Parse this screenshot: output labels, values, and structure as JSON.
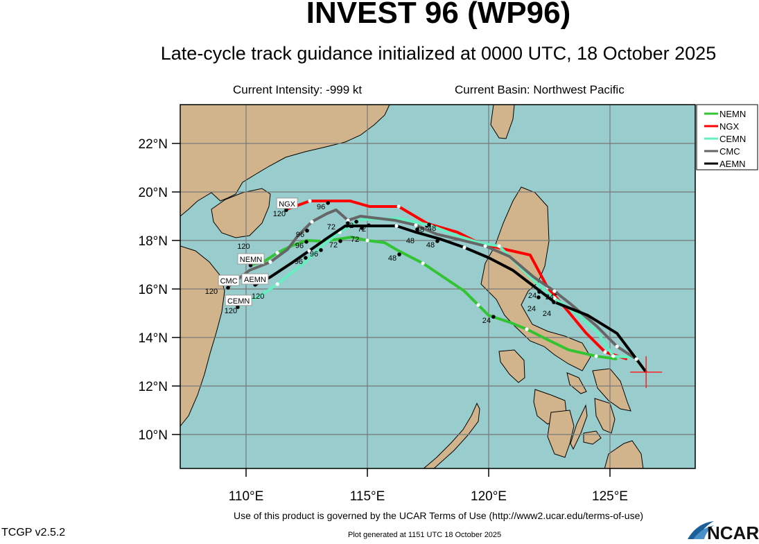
{
  "header": {
    "title": "INVEST 96 (WP96)",
    "subtitle": "Late-cycle track guidance initialized at 0000 UTC, 18 October 2025",
    "current_intensity": "Current Intensity: -999 kt",
    "current_basin": "Current Basin: Northwest Pacific"
  },
  "footer": {
    "terms": "Use of this product is governed by the UCAR Terms of Use (http://www2.ucar.edu/terms-of-use)",
    "version": "TCGP v2.5.2",
    "generated": "Plot generated at 1151 UTC   18 October 2025",
    "logo": "NCAR"
  },
  "chart_data": {
    "type": "map-tracks",
    "lon_range": [
      107.3,
      128.5
    ],
    "lat_range": [
      8.6,
      23.6
    ],
    "grid": true,
    "x_ticks": [
      "110°E",
      "115°E",
      "120°E",
      "125°E"
    ],
    "x_tick_values": [
      110,
      115,
      120,
      125
    ],
    "y_ticks": [
      "10°N",
      "12°N",
      "14°N",
      "16°N",
      "18°N",
      "20°N",
      "22°N"
    ],
    "y_tick_values": [
      10,
      12,
      14,
      16,
      18,
      20,
      22
    ],
    "colors": {
      "ocean": "#99cccc",
      "land": "#d2b48c",
      "grid": "#777777",
      "current_position": "#ff2020"
    },
    "current_position": {
      "lon": 126.49,
      "lat": 12.57
    },
    "legend_position": "right",
    "series": [
      {
        "name": "NEMN",
        "color": "#33c433",
        "points": [
          [
            125.29,
            13.11
          ],
          [
            124.43,
            13.23
          ],
          [
            123.29,
            13.49
          ],
          [
            122.43,
            13.91
          ],
          [
            121.57,
            14.34
          ],
          [
            120.86,
            14.63
          ],
          [
            120.0,
            14.91
          ],
          [
            119.57,
            15.34
          ],
          [
            119.0,
            15.91
          ],
          [
            118.14,
            16.49
          ],
          [
            117.29,
            17.06
          ],
          [
            116.29,
            17.57
          ],
          [
            115.71,
            17.91
          ],
          [
            115.0,
            18.0
          ],
          [
            114.34,
            18.14
          ],
          [
            113.86,
            18.06
          ],
          [
            113.14,
            17.97
          ],
          [
            112.49,
            18.0
          ],
          [
            111.86,
            17.77
          ],
          [
            111.29,
            17.49
          ],
          [
            110.71,
            17.11
          ],
          [
            110.2,
            17.0
          ]
        ],
        "labels": [
          {
            "text": "120",
            "lon": 109.9,
            "lat": 16.86
          },
          {
            "text": "96",
            "lon": 112.2,
            "lat": 17.83
          },
          {
            "text": "72",
            "lon": 113.6,
            "lat": 17.86
          },
          {
            "text": "48",
            "lon": 116.03,
            "lat": 17.31
          },
          {
            "text": "24",
            "lon": 119.91,
            "lat": 14.74
          }
        ]
      },
      {
        "name": "NGX",
        "color": "#ff0000",
        "points": [
          [
            125.71,
            13.11
          ],
          [
            124.8,
            13.4
          ],
          [
            124.0,
            14.2
          ],
          [
            123.29,
            15.06
          ],
          [
            122.43,
            16.06
          ],
          [
            121.71,
            17.4
          ],
          [
            120.43,
            17.69
          ],
          [
            119.57,
            17.91
          ],
          [
            118.71,
            18.34
          ],
          [
            117.49,
            18.69
          ],
          [
            116.29,
            19.4
          ],
          [
            115.09,
            19.4
          ],
          [
            114.29,
            19.63
          ],
          [
            112.63,
            19.63
          ],
          [
            111.69,
            19.29
          ]
        ],
        "labels": [
          {
            "text": "120",
            "lon": 111.37,
            "lat": 19.14
          },
          {
            "text": "96",
            "lon": 113.09,
            "lat": 19.43
          },
          {
            "text": "72",
            "lon": 114.77,
            "lat": 18.51
          },
          {
            "text": "48",
            "lon": 117.17,
            "lat": 18.49
          },
          {
            "text": "24",
            "lon": 122.51,
            "lat": 15.71
          }
        ]
      },
      {
        "name": "CEMN",
        "color": "#66eec0",
        "points": [
          [
            126.14,
            13.17
          ],
          [
            125.14,
            13.23
          ],
          [
            124.49,
            14.2
          ],
          [
            123.71,
            14.91
          ],
          [
            122.71,
            15.63
          ],
          [
            121.86,
            16.34
          ],
          [
            121.14,
            17.06
          ],
          [
            120.43,
            17.77
          ],
          [
            119.66,
            17.89
          ],
          [
            118.71,
            18.2
          ],
          [
            117.57,
            18.63
          ],
          [
            116.29,
            18.91
          ],
          [
            114.71,
            18.86
          ],
          [
            113.86,
            18.34
          ],
          [
            113.29,
            17.91
          ],
          [
            112.43,
            17.11
          ],
          [
            111.29,
            16.2
          ],
          [
            110.57,
            15.71
          ],
          [
            109.69,
            15.29
          ]
        ],
        "labels": [
          {
            "text": "120",
            "lon": 109.37,
            "lat": 15.14
          },
          {
            "text": "96",
            "lon": 112.8,
            "lat": 17.49
          },
          {
            "text": "72",
            "lon": 114.26,
            "lat": 18.66
          },
          {
            "text": "48",
            "lon": 117.26,
            "lat": 18.54
          },
          {
            "text": "24",
            "lon": 121.8,
            "lat": 15.77
          }
        ]
      },
      {
        "name": "CMC",
        "color": "#666666",
        "points": [
          [
            126.09,
            13.11
          ],
          [
            125.29,
            13.63
          ],
          [
            124.43,
            14.49
          ],
          [
            123.43,
            15.34
          ],
          [
            122.71,
            15.91
          ],
          [
            121.86,
            16.49
          ],
          [
            120.86,
            17.34
          ],
          [
            119.86,
            17.77
          ],
          [
            118.71,
            18.06
          ],
          [
            117.86,
            18.26
          ],
          [
            117.0,
            18.63
          ],
          [
            116.14,
            18.83
          ],
          [
            114.71,
            19.0
          ],
          [
            114.2,
            18.83
          ],
          [
            113.71,
            19.26
          ],
          [
            113.34,
            19.11
          ],
          [
            112.71,
            18.77
          ],
          [
            112.14,
            18.2
          ],
          [
            111.71,
            17.63
          ],
          [
            111.0,
            17.11
          ],
          [
            110.14,
            16.77
          ],
          [
            109.29,
            16.11
          ]
        ],
        "labels": [
          {
            "text": "120",
            "lon": 108.97,
            "lat": 15.94
          },
          {
            "text": "96",
            "lon": 112.23,
            "lat": 18.29
          },
          {
            "text": "72",
            "lon": 113.91,
            "lat": 18.6
          },
          {
            "text": "48",
            "lon": 116.77,
            "lat": 18.34
          },
          {
            "text": "24",
            "lon": 121.77,
            "lat": 15.54
          }
        ]
      },
      {
        "name": "AEMN",
        "color": "#000000",
        "points": [
          [
            126.49,
            12.57
          ],
          [
            126.09,
            13.11
          ],
          [
            125.29,
            14.17
          ],
          [
            124.09,
            14.91
          ],
          [
            122.71,
            15.46
          ],
          [
            121.0,
            16.77
          ],
          [
            120.0,
            17.29
          ],
          [
            119.0,
            17.71
          ],
          [
            118.0,
            18.06
          ],
          [
            117.0,
            18.34
          ],
          [
            116.2,
            18.6
          ],
          [
            114.09,
            18.6
          ],
          [
            113.29,
            18.06
          ],
          [
            112.6,
            17.57
          ],
          [
            111.86,
            17.06
          ],
          [
            111.0,
            16.49
          ],
          [
            110.37,
            16.17
          ]
        ],
        "labels": [
          {
            "text": "120",
            "lon": 110.09,
            "lat": 16.06
          },
          {
            "text": "96",
            "lon": 112.17,
            "lat": 17.17
          },
          {
            "text": "72",
            "lon": 114.49,
            "lat": 18.4
          },
          {
            "text": "48",
            "lon": 117.6,
            "lat": 17.86
          },
          {
            "text": "24",
            "lon": 122.4,
            "lat": 15.34
          }
        ]
      }
    ]
  }
}
